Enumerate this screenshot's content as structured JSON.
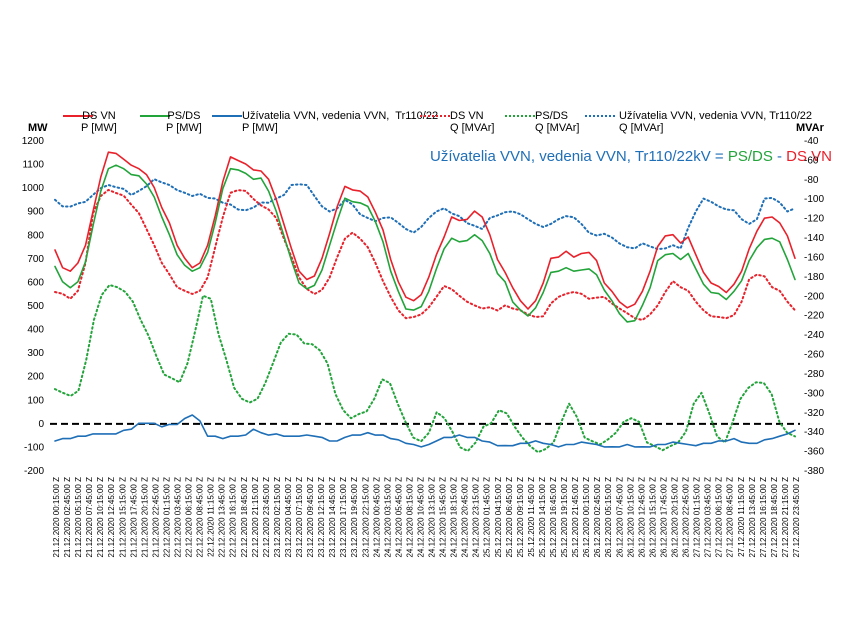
{
  "chart_data": {
    "type": "line",
    "title_parts": [
      {
        "text": "Užívatelia VVN, vedenia VVN, Tr110/22kV",
        "color": "#1f6fb7"
      },
      {
        "text": " = ",
        "color": "#1f6fb7"
      },
      {
        "text": "PS/DS",
        "color": "#22a43a"
      },
      {
        "text": " - ",
        "color": "#1f6fb7"
      },
      {
        "text": "DS VN",
        "color": "#e8212b"
      }
    ],
    "y_left": {
      "unit": "MW",
      "ylim": [
        -200,
        1200
      ],
      "ticks": [
        -200,
        -100,
        0,
        100,
        200,
        300,
        400,
        500,
        600,
        700,
        800,
        900,
        1000,
        1100,
        1200
      ]
    },
    "y_right": {
      "unit": "MVAr",
      "ylim": [
        -380,
        -40
      ],
      "ticks": [
        -380,
        -360,
        -340,
        -320,
        -300,
        -280,
        -260,
        -240,
        -220,
        -200,
        -180,
        -160,
        -140,
        -120,
        -100,
        -80,
        -60,
        -40
      ]
    },
    "x_labels": [
      "21.12.2020 00:15:00 Z",
      "21.12.2020 02:45:00 Z",
      "21.12.2020 05:15:00 Z",
      "21.12.2020 07:45:00 Z",
      "21.12.2020 10:15:00 Z",
      "21.12.2020 12:45:00 Z",
      "21.12.2020 15:15:00 Z",
      "21.12.2020 17:45:00 Z",
      "21.12.2020 20:15:00 Z",
      "21.12.2020 22:45:00 Z",
      "22.12.2020 01:15:00 Z",
      "22.12.2020 03:45:00 Z",
      "22.12.2020 06:15:00 Z",
      "22.12.2020 08:45:00 Z",
      "22.12.2020 11:15:00 Z",
      "22.12.2020 13:45:00 Z",
      "22.12.2020 16:15:00 Z",
      "22.12.2020 18:45:00 Z",
      "22.12.2020 21:15:00 Z",
      "22.12.2020 23:45:00 Z",
      "23.12.2020 02:15:00 Z",
      "23.12.2020 04:45:00 Z",
      "23.12.2020 07:15:00 Z",
      "23.12.2020 09:45:00 Z",
      "23.12.2020 12:15:00 Z",
      "23.12.2020 14:45:00 Z",
      "23.12.2020 17:15:00 Z",
      "23.12.2020 19:45:00 Z",
      "23.12.2020 22:15:00 Z",
      "24.12.2020 00:45:00 Z",
      "24.12.2020 03:15:00 Z",
      "24.12.2020 05:45:00 Z",
      "24.12.2020 08:15:00 Z",
      "24.12.2020 10:45:00 Z",
      "24.12.2020 13:15:00 Z",
      "24.12.2020 15:45:00 Z",
      "24.12.2020 18:15:00 Z",
      "24.12.2020 20:45:00 Z",
      "24.12.2020 23:15:00 Z",
      "25.12.2020 01:45:00 Z",
      "25.12.2020 04:15:00 Z",
      "25.12.2020 06:45:00 Z",
      "25.12.2020 09:15:00 Z",
      "25.12.2020 11:45:00 Z",
      "25.12.2020 14:15:00 Z",
      "25.12.2020 16:45:00 Z",
      "25.12.2020 19:15:00 Z",
      "25.12.2020 21:45:00 Z",
      "26.12.2020 00:15:00 Z",
      "26.12.2020 02:45:00 Z",
      "26.12.2020 05:15:00 Z",
      "26.12.2020 07:45:00 Z",
      "26.12.2020 10:15:00 Z",
      "26.12.2020 12:45:00 Z",
      "26.12.2020 15:15:00 Z",
      "26.12.2020 17:45:00 Z",
      "26.12.2020 20:15:00 Z",
      "26.12.2020 22:45:00 Z",
      "27.12.2020 01:15:00 Z",
      "27.12.2020 03:45:00 Z",
      "27.12.2020 06:15:00 Z",
      "27.12.2020 08:45:00 Z",
      "27.12.2020 11:15:00 Z",
      "27.12.2020 13:45:00 Z",
      "27.12.2020 16:15:00 Z",
      "27.12.2020 18:45:00 Z",
      "27.12.2020 21:15:00 Z",
      "27.12.2020 23:45:00 Z"
    ],
    "series": [
      {
        "name": "DS VN\nP [MW]",
        "axis": "left",
        "color": "#e8212b",
        "style": "solid",
        "values": [
          740,
          660,
          650,
          680,
          760,
          900,
          1050,
          1150,
          1150,
          1120,
          1100,
          1080,
          1060,
          1000,
          920,
          850,
          760,
          700,
          665,
          680,
          760,
          880,
          1030,
          1130,
          1120,
          1100,
          1080,
          1070,
          1040,
          950,
          850,
          740,
          650,
          610,
          630,
          700,
          810,
          920,
          1010,
          990,
          990,
          960,
          900,
          820,
          700,
          600,
          540,
          520,
          550,
          620,
          720,
          790,
          880,
          860,
          870,
          900,
          880,
          800,
          700,
          640,
          580,
          520,
          490,
          520,
          600,
          700,
          710,
          730,
          710,
          720,
          730,
          690,
          600,
          560,
          520,
          490,
          510,
          560,
          650,
          750,
          800,
          800,
          770,
          790,
          720,
          640,
          600,
          580,
          560,
          590,
          650,
          740,
          820,
          870,
          880,
          850,
          800,
          700
        ]
      },
      {
        "name": "PS/DS\nP [MW]",
        "axis": "left",
        "color": "#22a43a",
        "style": "solid",
        "values": [
          670,
          600,
          580,
          600,
          690,
          840,
          990,
          1080,
          1100,
          1080,
          1060,
          1050,
          1020,
          960,
          880,
          800,
          720,
          670,
          650,
          660,
          730,
          850,
          1000,
          1080,
          1080,
          1060,
          1040,
          1040,
          990,
          900,
          800,
          690,
          600,
          570,
          590,
          650,
          760,
          860,
          960,
          940,
          940,
          920,
          860,
          770,
          650,
          560,
          490,
          480,
          500,
          560,
          660,
          740,
          790,
          770,
          780,
          800,
          780,
          720,
          640,
          600,
          520,
          480,
          460,
          490,
          560,
          640,
          650,
          660,
          650,
          650,
          660,
          630,
          570,
          520,
          470,
          430,
          440,
          500,
          580,
          690,
          720,
          720,
          700,
          720,
          660,
          590,
          560,
          550,
          530,
          560,
          610,
          690,
          750,
          780,
          790,
          770,
          700,
          610
        ]
      },
      {
        "name": "Užívatelia VVN, vedenia VVN,  Tr110/22\nP [MW]",
        "axis": "left",
        "color": "#1f6fb7",
        "style": "solid",
        "values": [
          -70,
          -65,
          -60,
          -55,
          -50,
          -45,
          -40,
          -45,
          -40,
          -30,
          -20,
          0,
          5,
          0,
          -10,
          -5,
          0,
          20,
          40,
          10,
          -50,
          -55,
          -60,
          -55,
          -50,
          -50,
          -20,
          -40,
          -45,
          -45,
          -50,
          -55,
          -50,
          -50,
          -50,
          -60,
          -70,
          -75,
          -55,
          -50,
          -45,
          -40,
          -45,
          -50,
          -60,
          -70,
          -80,
          -90,
          -95,
          -90,
          -70,
          -60,
          -55,
          -50,
          -55,
          -60,
          -70,
          -80,
          -90,
          -95,
          -90,
          -85,
          -80,
          -75,
          -80,
          -90,
          -95,
          -90,
          -85,
          -80,
          -80,
          -90,
          -95,
          -100,
          -95,
          -90,
          -95,
          -100,
          -95,
          -90,
          -85,
          -80,
          -80,
          -90,
          -90,
          -85,
          -80,
          -75,
          -70,
          -65,
          -75,
          -85,
          -80,
          -70,
          -60,
          -55,
          -40,
          -30
        ]
      },
      {
        "name": "DS VN\nQ [MVAr]",
        "axis": "right",
        "color": "#e8212b",
        "style": "dotted",
        "values": [
          -195,
          -198,
          -202,
          -195,
          -165,
          -115,
          -96,
          -91,
          -93,
          -97,
          -105,
          -115,
          -130,
          -148,
          -165,
          -178,
          -190,
          -195,
          -197,
          -195,
          -180,
          -150,
          -118,
          -94,
          -90,
          -92,
          -99,
          -107,
          -110,
          -120,
          -140,
          -160,
          -180,
          -193,
          -197,
          -194,
          -180,
          -160,
          -140,
          -135,
          -140,
          -150,
          -165,
          -185,
          -200,
          -215,
          -222,
          -222,
          -218,
          -212,
          -200,
          -190,
          -192,
          -200,
          -205,
          -210,
          -212,
          -212,
          -214,
          -210,
          -212,
          -215,
          -218,
          -222,
          -220,
          -208,
          -200,
          -198,
          -195,
          -198,
          -202,
          -202,
          -200,
          -208,
          -212,
          -218,
          -222,
          -225,
          -218,
          -210,
          -195,
          -185,
          -190,
          -195,
          -205,
          -215,
          -220,
          -222,
          -222,
          -220,
          -205,
          -183,
          -177,
          -180,
          -190,
          -195,
          -205,
          -215
        ]
      },
      {
        "name": "PS/DS\nQ [MVAr]",
        "axis": "right",
        "color": "#22a43a",
        "style": "dotted",
        "values": [
          -295,
          -300,
          -302,
          -298,
          -265,
          -225,
          -198,
          -189,
          -190,
          -196,
          -205,
          -225,
          -240,
          -262,
          -280,
          -285,
          -288,
          -270,
          -235,
          -200,
          -202,
          -240,
          -265,
          -295,
          -305,
          -310,
          -305,
          -290,
          -268,
          -248,
          -238,
          -240,
          -248,
          -250,
          -255,
          -270,
          -300,
          -318,
          -325,
          -322,
          -318,
          -306,
          -285,
          -290,
          -310,
          -330,
          -345,
          -350,
          -340,
          -320,
          -325,
          -340,
          -355,
          -360,
          -350,
          -335,
          -330,
          -318,
          -320,
          -335,
          -345,
          -355,
          -360,
          -358,
          -350,
          -330,
          -310,
          -325,
          -345,
          -350,
          -352,
          -348,
          -340,
          -330,
          -325,
          -330,
          -350,
          -355,
          -358,
          -355,
          -350,
          -340,
          -310,
          -300,
          -320,
          -345,
          -350,
          -330,
          -305,
          -295,
          -288,
          -290,
          -300,
          -330,
          -340,
          -345
        ]
      },
      {
        "name": "Užívatelia VVN, vedenia VVN, Tr110/22\nQ [MVAr]",
        "axis": "right",
        "color": "#1f6fb7",
        "style": "dotted",
        "values": [
          -100,
          -108,
          -107,
          -105,
          -102,
          -96,
          -88,
          -86,
          -87,
          -90,
          -95,
          -92,
          -86,
          -80,
          -82,
          -86,
          -90,
          -94,
          -96,
          -95,
          -98,
          -100,
          -103,
          -106,
          -110,
          -112,
          -108,
          -104,
          -103,
          -100,
          -95,
          -86,
          -84,
          -86,
          -96,
          -108,
          -112,
          -110,
          -100,
          -106,
          -115,
          -120,
          -122,
          -120,
          -118,
          -125,
          -130,
          -135,
          -128,
          -120,
          -112,
          -110,
          -114,
          -118,
          -124,
          -128,
          -130,
          -120,
          -116,
          -114,
          -112,
          -116,
          -120,
          -126,
          -128,
          -126,
          -120,
          -118,
          -118,
          -126,
          -134,
          -138,
          -135,
          -140,
          -145,
          -150,
          -150,
          -146,
          -148,
          -152,
          -150,
          -148,
          -150,
          -130,
          -112,
          -100,
          -102,
          -108,
          -110,
          -112,
          -120,
          -126,
          -120,
          -100,
          -98,
          -104,
          -112,
          -110
        ]
      }
    ],
    "zero_line": {
      "value": 0,
      "style": "dashed",
      "color": "#000000"
    }
  }
}
